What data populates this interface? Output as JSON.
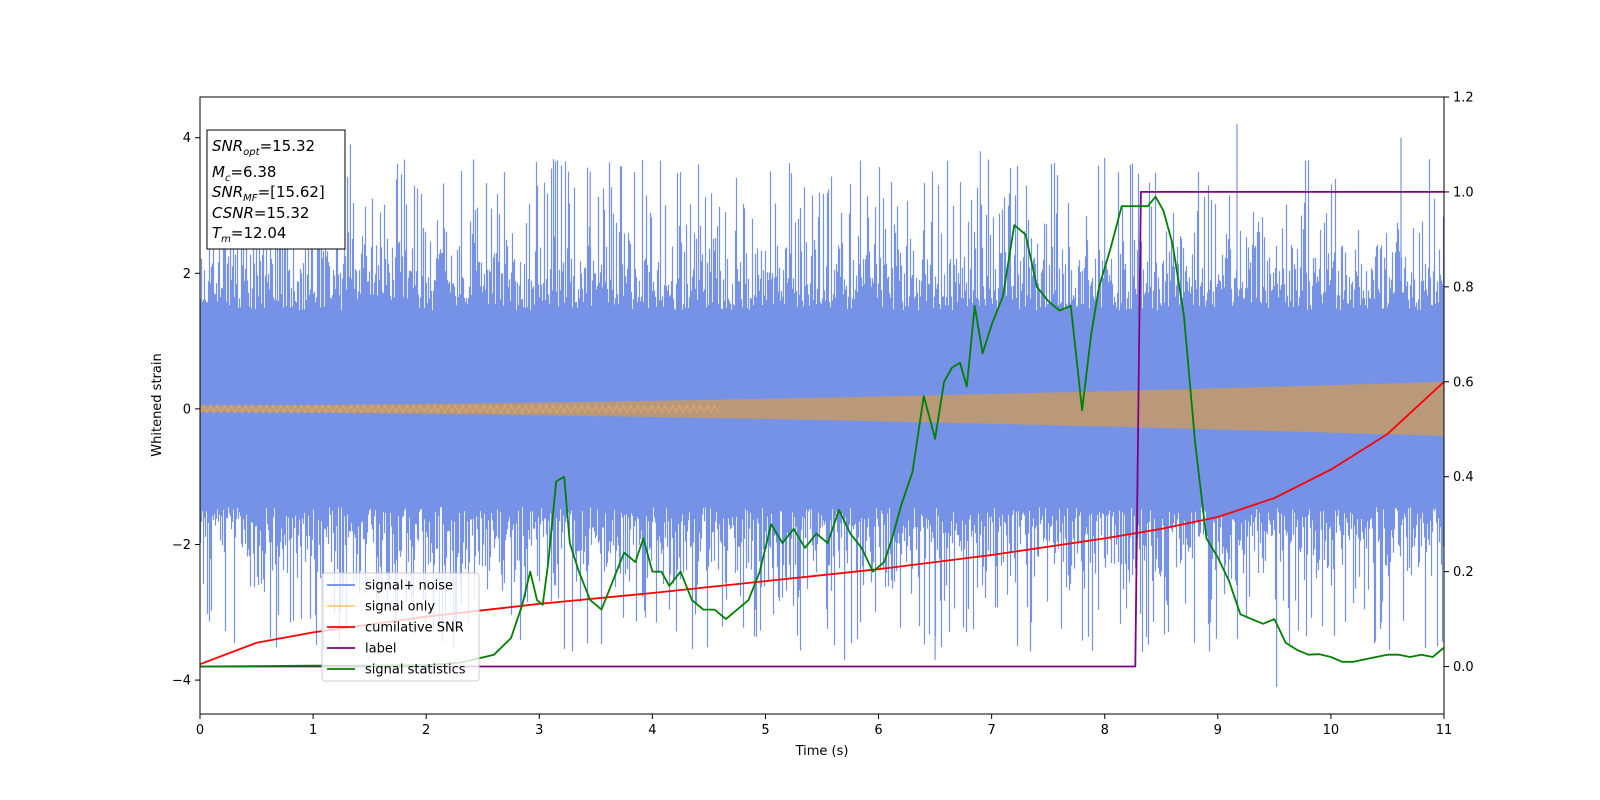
{
  "chart_data": {
    "type": "line",
    "xlabel": "Time (s)",
    "ylabel": "Whitened strain",
    "xlim": [
      0,
      11
    ],
    "ylim_left": [
      -4.5,
      4.6
    ],
    "ylim_right": [
      -0.1,
      1.2
    ],
    "x_ticks": [
      "0",
      "1",
      "2",
      "3",
      "4",
      "5",
      "6",
      "7",
      "8",
      "9",
      "10",
      "11"
    ],
    "y_left_ticks": [
      "−4",
      "−2",
      "0",
      "2",
      "4"
    ],
    "y_left_tick_values": [
      -4,
      -2,
      0,
      2,
      4
    ],
    "y_right_ticks": [
      "0.0",
      "0.2",
      "0.4",
      "0.6",
      "0.8",
      "1.0",
      "1.2"
    ],
    "y_right_tick_values": [
      0.0,
      0.2,
      0.4,
      0.6,
      0.8,
      1.0,
      1.2
    ],
    "grid": false,
    "legend_position": "lower-left",
    "annotation": [
      {
        "base": "SNR",
        "sub": "opt",
        "value": "=15.32"
      },
      {
        "base": "M",
        "sub": "c",
        "value": "=6.38"
      },
      {
        "base": "SNR",
        "sub": "MF",
        "value": "=[15.62]"
      },
      {
        "base": "CSNR",
        "sub": "",
        "value": "=15.32"
      },
      {
        "base": "T",
        "sub": "m",
        "value": "=12.04"
      }
    ],
    "series": [
      {
        "name": "signal+ noise",
        "color": "#6a89e5",
        "axis": "left",
        "style": "noise band",
        "typical_range": [
          -1.9,
          1.9
        ],
        "peak_range": [
          -3.6,
          3.8
        ],
        "max_value": 4.2,
        "min_value": -4.1
      },
      {
        "name": "signal only",
        "color": "#ffa500",
        "axis": "left",
        "style": "chirp",
        "amplitude_start": 0.05,
        "amplitude_end": 0.4
      },
      {
        "name": "cumilative SNR",
        "color": "#ff0000",
        "axis": "right",
        "x": [
          0,
          0.5,
          1,
          2,
          3,
          4,
          5,
          6,
          7,
          8,
          8.5,
          9,
          9.5,
          10,
          10.5,
          11
        ],
        "y": [
          0.005,
          0.05,
          0.072,
          0.105,
          0.132,
          0.155,
          0.18,
          0.205,
          0.235,
          0.27,
          0.29,
          0.315,
          0.355,
          0.415,
          0.49,
          0.6
        ]
      },
      {
        "name": "label",
        "color": "#800080",
        "axis": "right",
        "x": [
          0,
          8.27,
          8.32,
          11
        ],
        "y": [
          0,
          0,
          1,
          1
        ]
      },
      {
        "name": "signal statistics",
        "color": "#008000",
        "axis": "right",
        "x": [
          0,
          0.5,
          1,
          1.5,
          2,
          2.3,
          2.6,
          2.75,
          2.85,
          2.92,
          2.98,
          3.03,
          3.08,
          3.15,
          3.22,
          3.27,
          3.35,
          3.45,
          3.55,
          3.65,
          3.75,
          3.85,
          3.92,
          4.0,
          4.08,
          4.15,
          4.25,
          4.35,
          4.45,
          4.55,
          4.65,
          4.75,
          4.85,
          4.95,
          5.05,
          5.15,
          5.25,
          5.35,
          5.45,
          5.55,
          5.65,
          5.75,
          5.85,
          5.95,
          6.05,
          6.12,
          6.2,
          6.3,
          6.4,
          6.5,
          6.58,
          6.65,
          6.72,
          6.78,
          6.85,
          6.92,
          7.0,
          7.1,
          7.2,
          7.3,
          7.4,
          7.5,
          7.6,
          7.7,
          7.8,
          7.88,
          7.95,
          8.05,
          8.15,
          8.2,
          8.3,
          8.38,
          8.45,
          8.52,
          8.6,
          8.7,
          8.8,
          8.9,
          9.0,
          9.1,
          9.2,
          9.3,
          9.4,
          9.5,
          9.6,
          9.7,
          9.8,
          9.9,
          10.0,
          10.1,
          10.2,
          10.3,
          10.4,
          10.5,
          10.6,
          10.7,
          10.8,
          10.9,
          11.0
        ],
        "y": [
          0.0,
          0.001,
          0.002,
          0.002,
          0.003,
          0.008,
          0.025,
          0.06,
          0.13,
          0.2,
          0.14,
          0.13,
          0.22,
          0.39,
          0.4,
          0.26,
          0.2,
          0.14,
          0.12,
          0.18,
          0.24,
          0.22,
          0.27,
          0.2,
          0.2,
          0.17,
          0.2,
          0.14,
          0.12,
          0.12,
          0.1,
          0.12,
          0.14,
          0.2,
          0.3,
          0.26,
          0.29,
          0.25,
          0.28,
          0.26,
          0.33,
          0.28,
          0.25,
          0.2,
          0.22,
          0.27,
          0.34,
          0.41,
          0.57,
          0.48,
          0.6,
          0.63,
          0.64,
          0.59,
          0.76,
          0.66,
          0.72,
          0.78,
          0.93,
          0.91,
          0.8,
          0.77,
          0.75,
          0.76,
          0.54,
          0.7,
          0.8,
          0.88,
          0.97,
          0.97,
          0.97,
          0.97,
          0.99,
          0.96,
          0.89,
          0.74,
          0.47,
          0.27,
          0.23,
          0.18,
          0.11,
          0.1,
          0.09,
          0.1,
          0.05,
          0.035,
          0.025,
          0.026,
          0.02,
          0.01,
          0.01,
          0.015,
          0.02,
          0.025,
          0.025,
          0.02,
          0.025,
          0.02,
          0.04
        ]
      }
    ]
  }
}
